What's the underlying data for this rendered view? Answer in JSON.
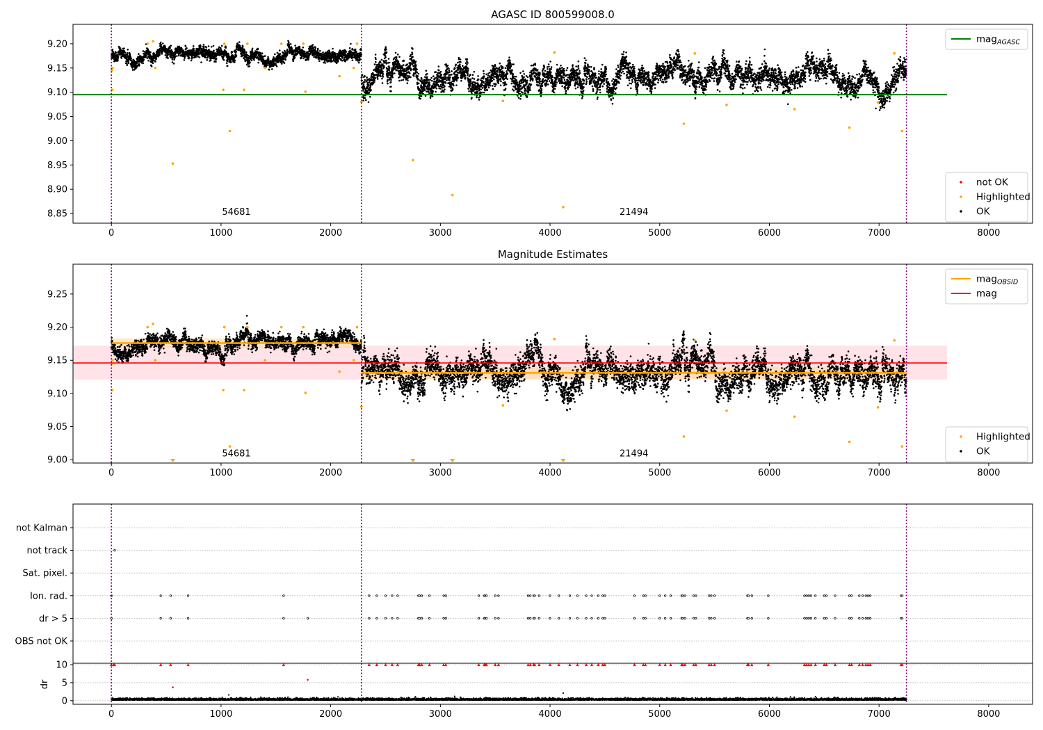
{
  "colors": {
    "ok": "#000000",
    "highlighted": "#ffa500",
    "not_ok": "#ff0000",
    "agasc_line": "#008000",
    "obsid_line": "#ffa500",
    "mag_line": "#ff0000",
    "boundary": "#800080",
    "band": "#ffc0cb",
    "grid": "#b0b0b0"
  },
  "obs_boundaries": [
    0,
    2280,
    7250
  ],
  "obs_ids": [
    {
      "id": "54681",
      "x": 1140
    },
    {
      "id": "21494",
      "x": 4765
    }
  ],
  "chart_data": [
    {
      "type": "scatter",
      "title": "AGASC ID 800599008.0",
      "xlim": [
        -350,
        8400
      ],
      "ylim": [
        8.83,
        9.24
      ],
      "xticks": [
        0,
        1000,
        2000,
        3000,
        4000,
        5000,
        6000,
        7000,
        8000
      ],
      "yticks": [
        8.85,
        8.9,
        8.95,
        9.0,
        9.05,
        9.1,
        9.15,
        9.2
      ],
      "ytick_labels": [
        "8.85",
        "8.90",
        "8.95",
        "9.00",
        "9.05",
        "9.10",
        "9.15",
        "9.20"
      ],
      "xtick_labels": [
        "0",
        "1000",
        "2000",
        "3000",
        "4000",
        "5000",
        "6000",
        "7000",
        "8000"
      ],
      "obsid_label_y": 8.847,
      "lines": [
        {
          "name": "mag_AGASC",
          "y": 9.095,
          "x": [
            -350,
            7620
          ]
        }
      ],
      "segments": [
        {
          "x": [
            0,
            2280
          ],
          "mean": 9.176,
          "sd": 0.009
        },
        {
          "x": [
            2280,
            7250
          ],
          "mean": 9.13,
          "sd": 0.017
        }
      ],
      "highlighted": [
        [
          5,
          9.145
        ],
        [
          10,
          9.15
        ],
        [
          8,
          9.105
        ],
        [
          330,
          9.2
        ],
        [
          380,
          9.205
        ],
        [
          400,
          9.15
        ],
        [
          560,
          8.953
        ],
        [
          1020,
          9.105
        ],
        [
          1030,
          9.2
        ],
        [
          1080,
          9.02
        ],
        [
          1210,
          9.105
        ],
        [
          1240,
          9.2
        ],
        [
          1400,
          9.15
        ],
        [
          1550,
          9.2
        ],
        [
          1750,
          9.2
        ],
        [
          1770,
          9.101
        ],
        [
          2080,
          9.133
        ],
        [
          2210,
          9.15
        ],
        [
          2240,
          9.2
        ],
        [
          2280,
          9.08
        ],
        [
          2750,
          8.96
        ],
        [
          3110,
          8.888
        ],
        [
          3570,
          9.082
        ],
        [
          4040,
          9.182
        ],
        [
          4120,
          8.863
        ],
        [
          5220,
          9.035
        ],
        [
          5320,
          9.18
        ],
        [
          5610,
          9.074
        ],
        [
          6230,
          9.065
        ],
        [
          6730,
          9.027
        ],
        [
          6990,
          9.079
        ],
        [
          7140,
          9.18
        ],
        [
          7210,
          9.02
        ]
      ],
      "legends": [
        {
          "position": "top-right",
          "entries": [
            {
              "label": "mag",
              "sub": "AGASC",
              "kind": "line",
              "color": "#008000"
            }
          ]
        },
        {
          "position": "bottom-right",
          "entries": [
            {
              "label": "not OK",
              "kind": "dot",
              "color": "#ff0000"
            },
            {
              "label": "Highlighted",
              "kind": "dot",
              "color": "#ffa500"
            },
            {
              "label": "OK",
              "kind": "dot",
              "color": "#000000"
            }
          ]
        }
      ]
    },
    {
      "type": "scatter",
      "title": "Magnitude Estimates",
      "xlim": [
        -350,
        8400
      ],
      "ylim": [
        8.995,
        9.295
      ],
      "xticks": [
        0,
        1000,
        2000,
        3000,
        4000,
        5000,
        6000,
        7000,
        8000
      ],
      "xtick_labels": [
        "0",
        "1000",
        "2000",
        "3000",
        "4000",
        "5000",
        "6000",
        "7000",
        "8000"
      ],
      "yticks": [
        9.0,
        9.05,
        9.1,
        9.15,
        9.2,
        9.25
      ],
      "ytick_labels": [
        "9.00",
        "9.05",
        "9.10",
        "9.15",
        "9.20",
        "9.25"
      ],
      "obsid_label_y": 9.005,
      "mag": {
        "y": 9.146,
        "band": [
          9.121,
          9.172
        ],
        "x": [
          -350,
          7620
        ]
      },
      "mag_obsid": [
        {
          "x": [
            0,
            2280
          ],
          "y": 9.176,
          "band": [
            9.169,
            9.183
          ]
        },
        {
          "x": [
            2280,
            7250
          ],
          "y": 9.131,
          "band": [
            9.122,
            9.14
          ]
        }
      ],
      "segments": [
        {
          "x": [
            0,
            2280
          ],
          "mean": 9.176,
          "sd": 0.009
        },
        {
          "x": [
            2280,
            7250
          ],
          "mean": 9.13,
          "sd": 0.017
        }
      ],
      "highlighted": [
        [
          5,
          9.145
        ],
        [
          10,
          9.15
        ],
        [
          8,
          9.105
        ],
        [
          330,
          9.2
        ],
        [
          380,
          9.205
        ],
        [
          400,
          9.15
        ],
        [
          1020,
          9.105
        ],
        [
          1030,
          9.2
        ],
        [
          1080,
          9.02
        ],
        [
          1210,
          9.105
        ],
        [
          1240,
          9.2
        ],
        [
          1400,
          9.15
        ],
        [
          1550,
          9.2
        ],
        [
          1750,
          9.2
        ],
        [
          1770,
          9.101
        ],
        [
          2080,
          9.133
        ],
        [
          2210,
          9.15
        ],
        [
          2240,
          9.2
        ],
        [
          2280,
          9.08
        ],
        [
          3570,
          9.082
        ],
        [
          4040,
          9.182
        ],
        [
          5220,
          9.035
        ],
        [
          5320,
          9.18
        ],
        [
          5610,
          9.074
        ],
        [
          6230,
          9.065
        ],
        [
          6730,
          9.027
        ],
        [
          6990,
          9.079
        ],
        [
          7140,
          9.18
        ],
        [
          7210,
          9.02
        ]
      ],
      "below_range": [
        560,
        2750,
        3110,
        4120
      ],
      "legends": [
        {
          "position": "top-right",
          "entries": [
            {
              "label": "mag",
              "sub": "OBSID",
              "kind": "line",
              "color": "#ffa500"
            },
            {
              "label": "mag",
              "kind": "line",
              "color": "#ff0000"
            }
          ]
        },
        {
          "position": "bottom-right",
          "entries": [
            {
              "label": "Highlighted",
              "kind": "dot",
              "color": "#ffa500"
            },
            {
              "label": "OK",
              "kind": "dot",
              "color": "#000000"
            }
          ]
        }
      ]
    },
    {
      "type": "scatter",
      "title": "",
      "xlim": [
        -350,
        8400
      ],
      "categories": [
        "not Kalman",
        "not track",
        "Sat. pixel.",
        "Ion. rad.",
        "dr > 5",
        "OBS not OK"
      ],
      "flags": {
        "not track": [
          30
        ],
        "Ion. rad.": [
          0,
          450,
          540,
          700,
          1570,
          2350,
          2420,
          2500,
          2560,
          2610,
          2800,
          2810,
          2830,
          2900,
          3030,
          3050,
          3350,
          3400,
          3410,
          3420,
          3500,
          3530,
          3800,
          3820,
          3850,
          3860,
          3900,
          4000,
          4080,
          4180,
          4250,
          4330,
          4380,
          4440,
          4480,
          4500,
          4770,
          4850,
          4870,
          5000,
          5050,
          5100,
          5200,
          5210,
          5230,
          5310,
          5330,
          5450,
          5470,
          5500,
          5800,
          5810,
          5840,
          5990,
          6320,
          6340,
          6360,
          6380,
          6420,
          6500,
          6520,
          6600,
          6730,
          6750,
          6820,
          6850,
          6880,
          6900,
          6920,
          7200,
          7210
        ],
        "dr > 5": [
          0,
          450,
          540,
          700,
          1570,
          1790,
          2350,
          2420,
          2500,
          2560,
          2610,
          2800,
          2810,
          2830,
          2900,
          3030,
          3050,
          3350,
          3400,
          3410,
          3420,
          3500,
          3530,
          3800,
          3820,
          3850,
          3860,
          3900,
          4000,
          4080,
          4180,
          4250,
          4330,
          4380,
          4440,
          4480,
          4500,
          4770,
          4850,
          4870,
          5000,
          5050,
          5100,
          5200,
          5210,
          5230,
          5310,
          5330,
          5450,
          5470,
          5500,
          5800,
          5810,
          5840,
          5990,
          6320,
          6340,
          6360,
          6380,
          6420,
          6500,
          6520,
          6600,
          6730,
          6750,
          6820,
          6850,
          6880,
          6900,
          6920,
          7200,
          7210
        ]
      }
    },
    {
      "type": "scatter",
      "title": "",
      "ylabel": "dr",
      "xlim": [
        -350,
        8400
      ],
      "ylim": [
        -1,
        10.4
      ],
      "yticks": [
        0,
        5,
        10
      ],
      "ytick_labels": [
        "0",
        "5",
        "10"
      ],
      "xticks": [
        0,
        1000,
        2000,
        3000,
        4000,
        5000,
        6000,
        7000,
        8000
      ],
      "xtick_labels": [
        "0",
        "1000",
        "2000",
        "3000",
        "4000",
        "5000",
        "6000",
        "7000",
        "8000"
      ],
      "red_capped": [
        0,
        20,
        30,
        450,
        540,
        700,
        1570,
        2350,
        2420,
        2500,
        2560,
        2610,
        2800,
        2810,
        2830,
        2900,
        3030,
        3050,
        3350,
        3400,
        3410,
        3420,
        3500,
        3530,
        3800,
        3820,
        3850,
        3860,
        3900,
        4000,
        4080,
        4180,
        4250,
        4330,
        4380,
        4440,
        4480,
        4500,
        4770,
        4850,
        4870,
        5000,
        5050,
        5100,
        5200,
        5210,
        5230,
        5310,
        5330,
        5450,
        5470,
        5500,
        5800,
        5810,
        5840,
        5990,
        6320,
        6340,
        6360,
        6380,
        6420,
        6500,
        6520,
        6600,
        6730,
        6750,
        6820,
        6850,
        6880,
        6900,
        6920,
        7200,
        7210
      ],
      "red_points": [
        [
          560,
          3.7
        ],
        [
          1790,
          5.8
        ]
      ],
      "black_outliers": [
        [
          1070,
          1.6
        ],
        [
          4120,
          2.1
        ],
        [
          3130,
          1.2
        ],
        [
          6420,
          1.1
        ]
      ]
    }
  ]
}
